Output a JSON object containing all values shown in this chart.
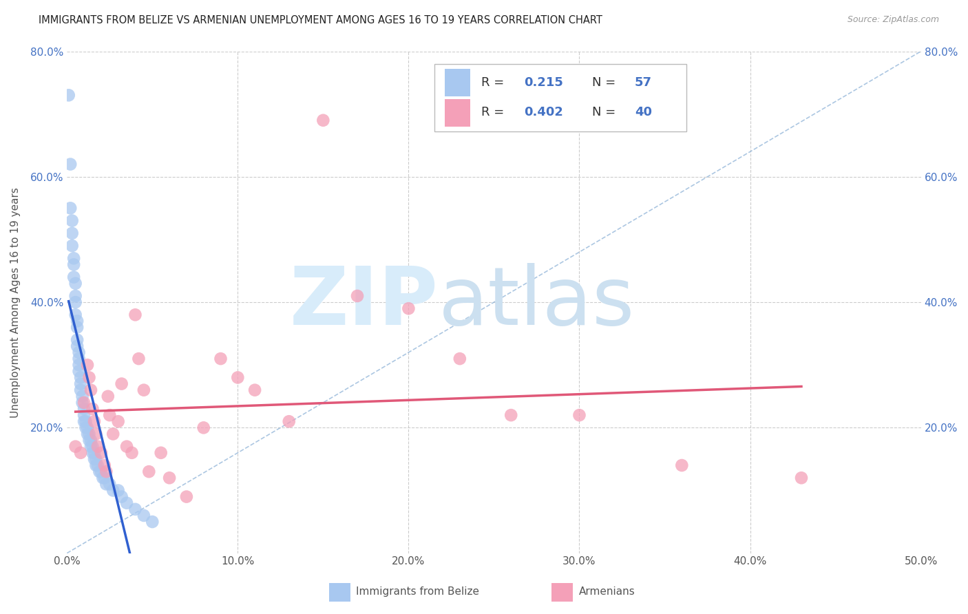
{
  "title": "IMMIGRANTS FROM BELIZE VS ARMENIAN UNEMPLOYMENT AMONG AGES 16 TO 19 YEARS CORRELATION CHART",
  "source": "Source: ZipAtlas.com",
  "ylabel": "Unemployment Among Ages 16 to 19 years",
  "label_belize": "Immigrants from Belize",
  "label_armenian": "Armenians",
  "xlim": [
    0,
    0.5
  ],
  "ylim": [
    0,
    0.8
  ],
  "xticks": [
    0.0,
    0.1,
    0.2,
    0.3,
    0.4,
    0.5
  ],
  "xticklabels": [
    "0.0%",
    "10.0%",
    "20.0%",
    "30.0%",
    "40.0%",
    "50.0%"
  ],
  "yticks": [
    0.0,
    0.2,
    0.4,
    0.6,
    0.8
  ],
  "yticklabels_left": [
    "",
    "20.0%",
    "40.0%",
    "60.0%",
    "80.0%"
  ],
  "yticklabels_right": [
    "",
    "20.0%",
    "40.0%",
    "60.0%",
    "80.0%"
  ],
  "legend_r_belize": "0.215",
  "legend_n_belize": "57",
  "legend_r_armenian": "0.402",
  "legend_n_armenian": "40",
  "belize_color": "#a8c8f0",
  "armenian_color": "#f4a0b8",
  "belize_line_color": "#3060d0",
  "armenian_line_color": "#e05878",
  "belize_x": [
    0.001,
    0.002,
    0.002,
    0.003,
    0.003,
    0.003,
    0.004,
    0.004,
    0.004,
    0.005,
    0.005,
    0.005,
    0.005,
    0.006,
    0.006,
    0.006,
    0.006,
    0.007,
    0.007,
    0.007,
    0.007,
    0.008,
    0.008,
    0.008,
    0.009,
    0.009,
    0.01,
    0.01,
    0.01,
    0.011,
    0.011,
    0.012,
    0.012,
    0.013,
    0.013,
    0.014,
    0.014,
    0.015,
    0.015,
    0.016,
    0.016,
    0.017,
    0.017,
    0.018,
    0.019,
    0.02,
    0.021,
    0.022,
    0.023,
    0.025,
    0.027,
    0.03,
    0.032,
    0.035,
    0.04,
    0.045,
    0.05
  ],
  "belize_y": [
    0.73,
    0.62,
    0.55,
    0.53,
    0.51,
    0.49,
    0.47,
    0.46,
    0.44,
    0.43,
    0.41,
    0.4,
    0.38,
    0.37,
    0.36,
    0.34,
    0.33,
    0.32,
    0.31,
    0.3,
    0.29,
    0.28,
    0.27,
    0.26,
    0.25,
    0.24,
    0.23,
    0.22,
    0.21,
    0.21,
    0.2,
    0.2,
    0.19,
    0.19,
    0.18,
    0.18,
    0.17,
    0.17,
    0.16,
    0.16,
    0.15,
    0.15,
    0.14,
    0.14,
    0.13,
    0.13,
    0.12,
    0.12,
    0.11,
    0.11,
    0.1,
    0.1,
    0.09,
    0.08,
    0.07,
    0.06,
    0.05
  ],
  "armenian_x": [
    0.005,
    0.008,
    0.01,
    0.012,
    0.013,
    0.014,
    0.015,
    0.016,
    0.017,
    0.018,
    0.02,
    0.022,
    0.023,
    0.024,
    0.025,
    0.027,
    0.03,
    0.032,
    0.035,
    0.038,
    0.04,
    0.042,
    0.045,
    0.048,
    0.055,
    0.06,
    0.07,
    0.08,
    0.09,
    0.1,
    0.11,
    0.13,
    0.15,
    0.17,
    0.2,
    0.23,
    0.26,
    0.3,
    0.36,
    0.43
  ],
  "armenian_y": [
    0.17,
    0.16,
    0.24,
    0.3,
    0.28,
    0.26,
    0.23,
    0.21,
    0.19,
    0.17,
    0.16,
    0.14,
    0.13,
    0.25,
    0.22,
    0.19,
    0.21,
    0.27,
    0.17,
    0.16,
    0.38,
    0.31,
    0.26,
    0.13,
    0.16,
    0.12,
    0.09,
    0.2,
    0.31,
    0.28,
    0.26,
    0.21,
    0.69,
    0.41,
    0.39,
    0.31,
    0.22,
    0.22,
    0.14,
    0.12
  ],
  "watermark_color": "#d8ecfa",
  "background_color": "#ffffff",
  "grid_color": "#cccccc"
}
